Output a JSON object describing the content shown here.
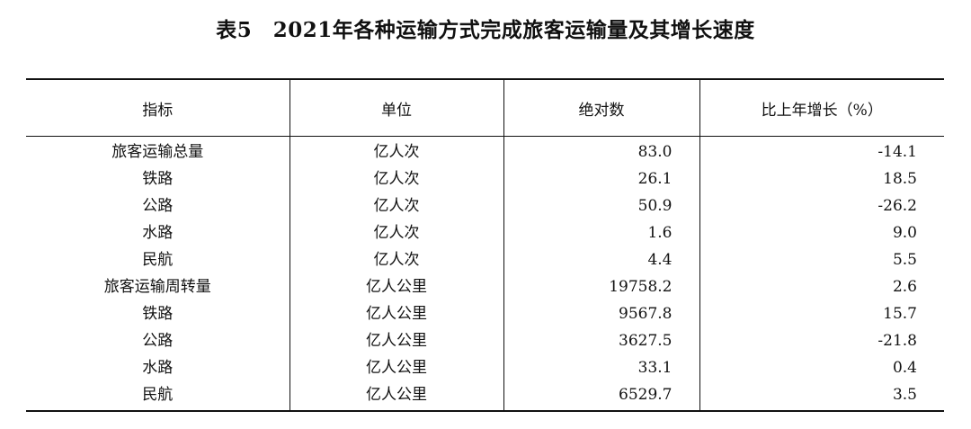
{
  "title": "表5　2021年各种运输方式完成旅客运输量及其增长速度",
  "columns": [
    "指标",
    "单位",
    "绝对数",
    "比上年增长（%）"
  ],
  "rows": [
    {
      "indicator": "旅客运输总量",
      "unit": "亿人次",
      "value": "83.0",
      "growth": "-14.1"
    },
    {
      "indicator": "铁路",
      "unit": "亿人次",
      "value": "26.1",
      "growth": "18.5"
    },
    {
      "indicator": "公路",
      "unit": "亿人次",
      "value": "50.9",
      "growth": "-26.2"
    },
    {
      "indicator": "水路",
      "unit": "亿人次",
      "value": "1.6",
      "growth": "9.0"
    },
    {
      "indicator": "民航",
      "unit": "亿人次",
      "value": "4.4",
      "growth": "5.5"
    },
    {
      "indicator": "旅客运输周转量",
      "unit": "亿人公里",
      "value": "19758.2",
      "growth": "2.6"
    },
    {
      "indicator": "铁路",
      "unit": "亿人公里",
      "value": "9567.8",
      "growth": "15.7"
    },
    {
      "indicator": "公路",
      "unit": "亿人公里",
      "value": "3627.5",
      "growth": "-21.8"
    },
    {
      "indicator": "水路",
      "unit": "亿人公里",
      "value": "33.1",
      "growth": "0.4"
    },
    {
      "indicator": "民航",
      "unit": "亿人公里",
      "value": "6529.7",
      "growth": "3.5"
    }
  ]
}
